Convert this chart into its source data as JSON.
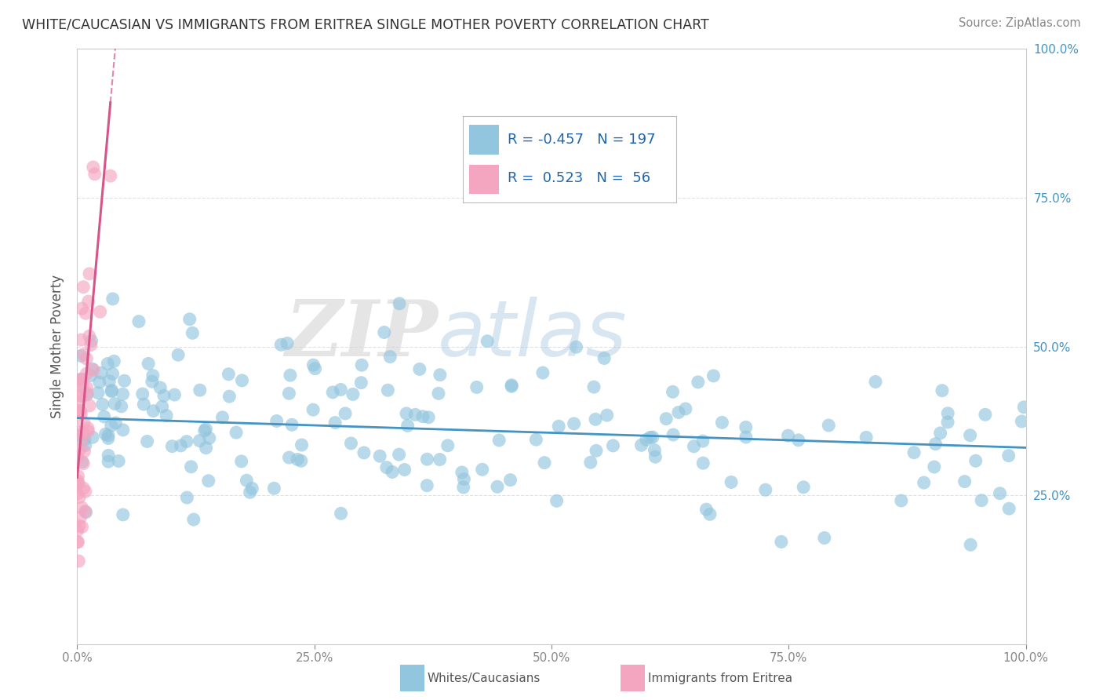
{
  "title": "WHITE/CAUCASIAN VS IMMIGRANTS FROM ERITREA SINGLE MOTHER POVERTY CORRELATION CHART",
  "source": "Source: ZipAtlas.com",
  "ylabel": "Single Mother Poverty",
  "blue_R": -0.457,
  "blue_N": 197,
  "pink_R": 0.523,
  "pink_N": 56,
  "blue_color": "#92c5de",
  "pink_color": "#f4a6c0",
  "blue_line_color": "#4393c3",
  "pink_line_color": "#d6548a",
  "legend_label_blue": "Whites/Caucasians",
  "legend_label_pink": "Immigrants from Eritrea",
  "xlim": [
    0,
    100
  ],
  "ylim": [
    0,
    100
  ],
  "yticks": [
    25,
    50,
    75,
    100
  ],
  "ytick_labels_right": [
    "25.0%",
    "50.0%",
    "75.0%",
    "100.0%"
  ],
  "xticks": [
    0,
    25,
    50,
    75,
    100
  ],
  "xtick_labels": [
    "0.0%",
    "25.0%",
    "50.0%",
    "75.0%",
    "100.0%"
  ],
  "watermark_zip": "ZIP",
  "watermark_atlas": "atlas",
  "background_color": "#ffffff",
  "grid_color": "#dddddd",
  "blue_trend_y0": 38.0,
  "blue_trend_y1": 33.0,
  "pink_trend_slope": 18.0,
  "pink_trend_intercept": 28.0,
  "pink_x_max_data": 3.5
}
